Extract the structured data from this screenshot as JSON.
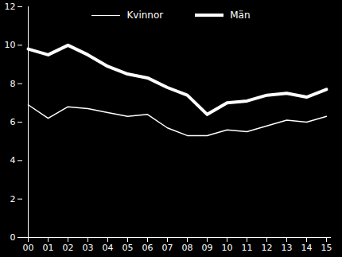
{
  "chart_data": {
    "type": "line",
    "categories": [
      "00",
      "01",
      "02",
      "03",
      "04",
      "05",
      "06",
      "07",
      "08",
      "09",
      "10",
      "11",
      "12",
      "13",
      "14",
      "15"
    ],
    "series": [
      {
        "name": "Kvinnor",
        "color": "#ffffff",
        "line_style": "solid",
        "values": [
          6.9,
          6.2,
          6.8,
          6.7,
          6.5,
          6.3,
          6.4,
          5.7,
          5.3,
          5.3,
          5.6,
          5.5,
          5.8,
          6.1,
          6.0,
          6.3
        ]
      },
      {
        "name": "Män",
        "color": "#ffffff",
        "line_style": "solid",
        "values": [
          9.8,
          9.5,
          10.0,
          9.5,
          8.9,
          8.5,
          8.3,
          7.8,
          7.4,
          6.4,
          7.0,
          7.1,
          7.4,
          7.5,
          7.3,
          7.7
        ]
      }
    ],
    "ylim": [
      0,
      12
    ],
    "yticks": [
      0,
      2,
      4,
      6,
      8,
      10,
      12
    ],
    "grid": false,
    "legend": "top"
  }
}
